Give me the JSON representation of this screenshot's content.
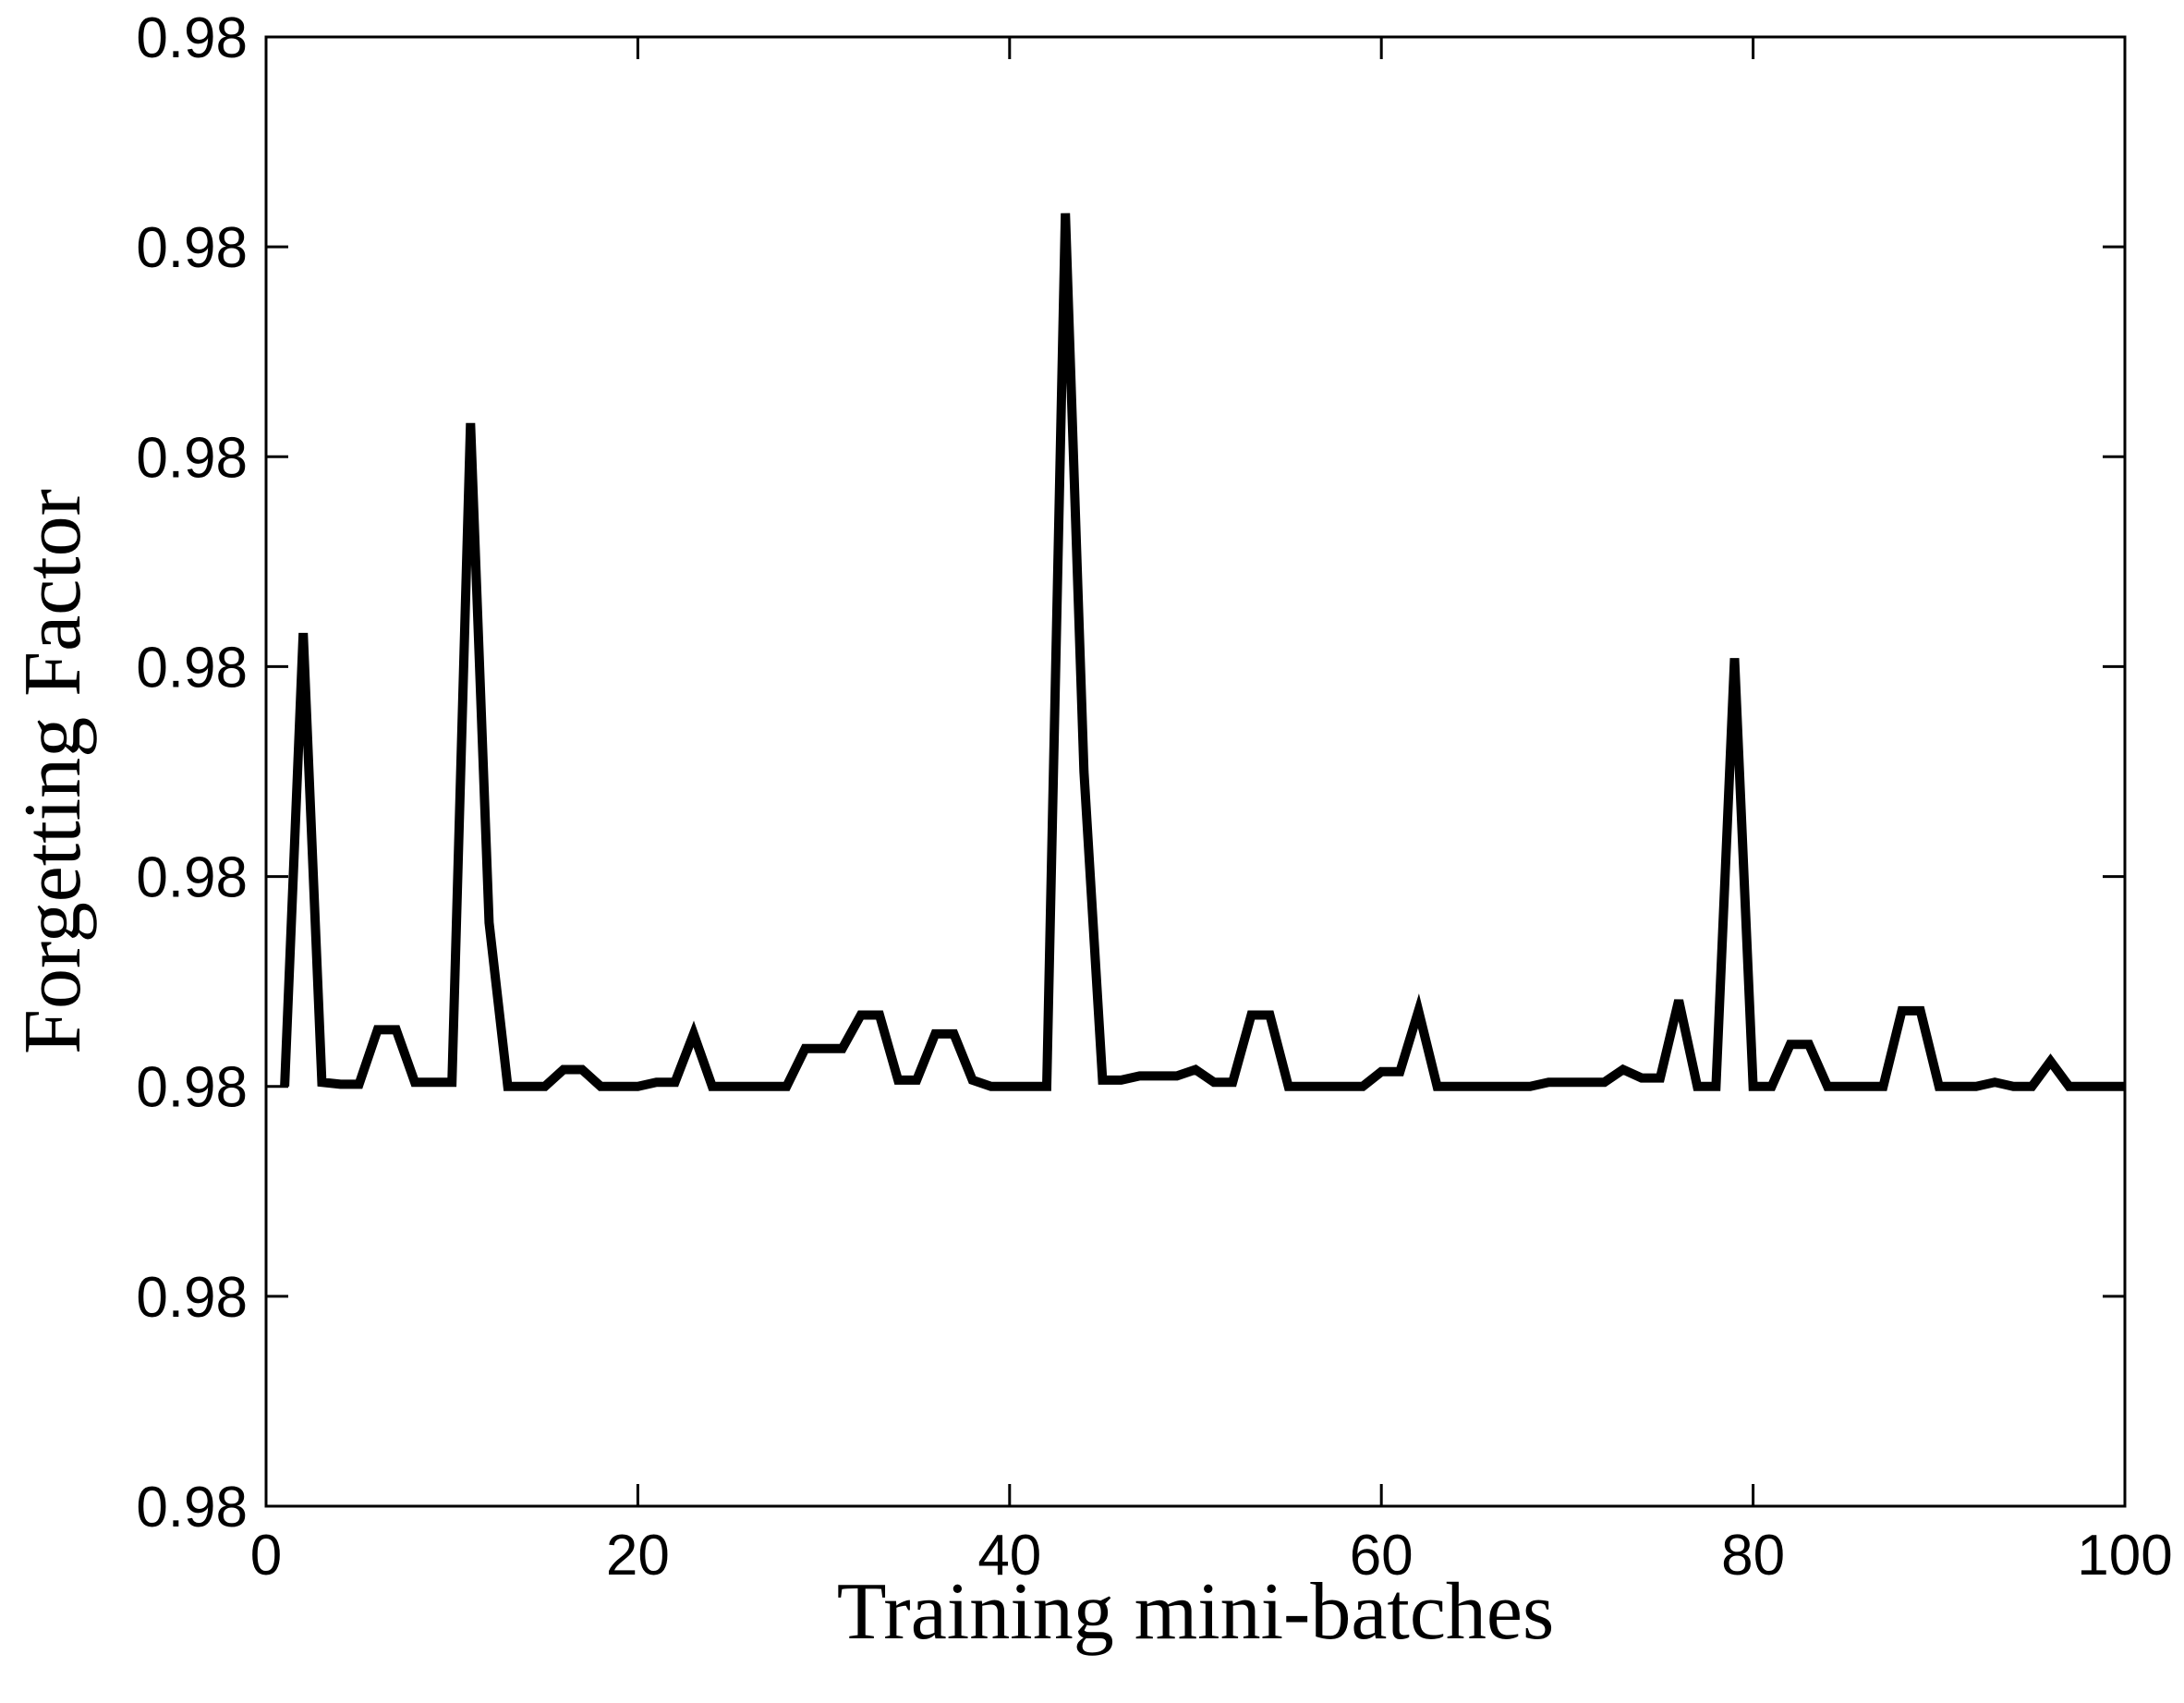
{
  "chart_data": {
    "type": "line",
    "title": "",
    "xlabel": "Training mini-batches",
    "ylabel": "Forgetting Factor",
    "xlim": [
      0,
      100
    ],
    "ylim": [
      0,
      7
    ],
    "grid": false,
    "legend": "none",
    "line_color": "#000000",
    "x_ticks": [
      {
        "value": 0,
        "label": "0"
      },
      {
        "value": 20,
        "label": "20"
      },
      {
        "value": 40,
        "label": "40"
      },
      {
        "value": 60,
        "label": "60"
      },
      {
        "value": 80,
        "label": "80"
      },
      {
        "value": 100,
        "label": "100"
      }
    ],
    "y_ticks": [
      {
        "value": 0,
        "label": "0.98"
      },
      {
        "value": 1,
        "label": "0.98"
      },
      {
        "value": 2,
        "label": "0.98"
      },
      {
        "value": 3,
        "label": "0.98"
      },
      {
        "value": 4,
        "label": "0.98"
      },
      {
        "value": 5,
        "label": "0.98"
      },
      {
        "value": 6,
        "label": "0.98"
      },
      {
        "value": 7,
        "label": "0.98"
      }
    ],
    "series": [
      {
        "x": [
          1,
          2,
          3,
          4,
          5,
          6,
          7,
          8,
          9,
          10,
          11,
          12,
          13,
          14,
          15,
          16,
          17,
          18,
          19,
          20,
          21,
          22,
          23,
          24,
          25,
          26,
          27,
          28,
          29,
          30,
          31,
          32,
          33,
          34,
          35,
          36,
          37,
          38,
          39,
          40,
          41,
          42,
          43,
          44,
          45,
          46,
          47,
          48,
          49,
          50,
          51,
          52,
          53,
          54,
          55,
          56,
          57,
          58,
          59,
          60,
          61,
          62,
          63,
          64,
          65,
          66,
          67,
          68,
          69,
          70,
          71,
          72,
          73,
          74,
          75,
          76,
          77,
          78,
          79,
          80,
          81,
          82,
          83,
          84,
          85,
          86,
          87,
          88,
          89,
          90,
          91,
          92,
          93,
          94,
          95,
          96,
          97,
          98,
          99,
          100
        ],
        "y": [
          2.0,
          4.16,
          2.02,
          2.01,
          2.01,
          2.27,
          2.27,
          2.02,
          2.02,
          2.02,
          5.16,
          2.78,
          2.0,
          2.0,
          2.0,
          2.08,
          2.08,
          2.0,
          2.0,
          2.0,
          2.02,
          2.02,
          2.25,
          2.0,
          2.0,
          2.0,
          2.0,
          2.0,
          2.18,
          2.18,
          2.18,
          2.34,
          2.34,
          2.03,
          2.03,
          2.25,
          2.25,
          2.03,
          2.0,
          2.0,
          2.0,
          2.0,
          6.16,
          3.5,
          2.03,
          2.03,
          2.05,
          2.05,
          2.05,
          2.08,
          2.02,
          2.02,
          2.34,
          2.34,
          2.0,
          2.0,
          2.0,
          2.0,
          2.0,
          2.07,
          2.07,
          2.36,
          2.0,
          2.0,
          2.0,
          2.0,
          2.0,
          2.0,
          2.02,
          2.02,
          2.02,
          2.02,
          2.08,
          2.04,
          2.04,
          2.41,
          2.0,
          2.0,
          4.04,
          2.0,
          2.0,
          2.2,
          2.2,
          2.0,
          2.0,
          2.0,
          2.0,
          2.36,
          2.36,
          2.0,
          2.0,
          2.0,
          2.02,
          2.0,
          2.0,
          2.12,
          2.0,
          2.0,
          2.0,
          2.0
        ]
      }
    ]
  }
}
